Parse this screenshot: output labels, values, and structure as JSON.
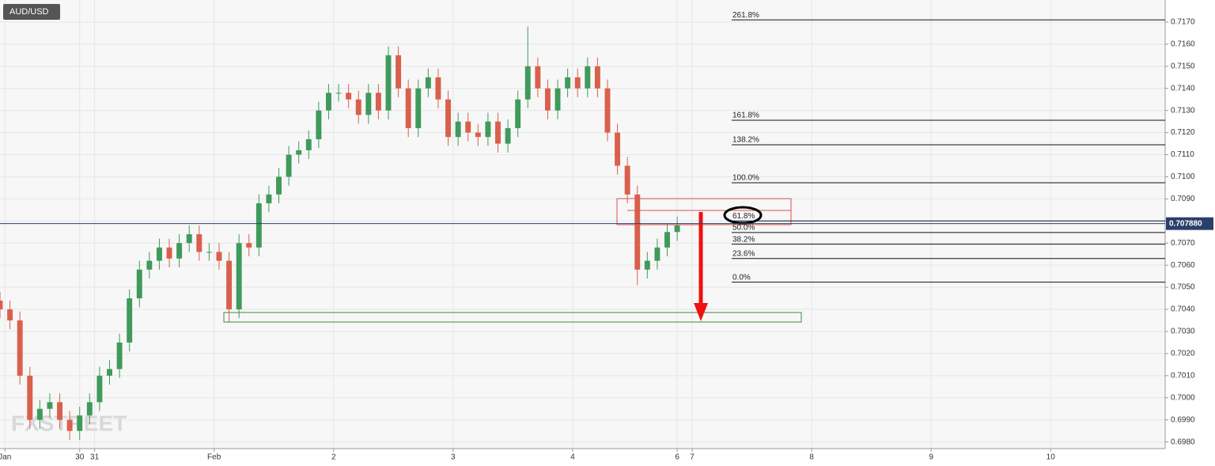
{
  "chart_data": {
    "type": "candlestick",
    "title": "AUD/USD",
    "watermark": "FXSTREET",
    "xlim": [
      0,
      234
    ],
    "ylim": [
      0.6977,
      0.718
    ],
    "xticks": [
      {
        "value": 1,
        "label": "Jan"
      },
      {
        "value": 16,
        "label": "30"
      },
      {
        "value": 19,
        "label": "31"
      },
      {
        "value": 43,
        "label": "Feb"
      },
      {
        "value": 67,
        "label": "2"
      },
      {
        "value": 91,
        "label": "3"
      },
      {
        "value": 115,
        "label": "4"
      },
      {
        "value": 136,
        "label": "6"
      },
      {
        "value": 139,
        "label": "7"
      },
      {
        "value": 163,
        "label": "8"
      },
      {
        "value": 187,
        "label": "9"
      },
      {
        "value": 211,
        "label": "10"
      }
    ],
    "yticks": [
      {
        "value": 0.698,
        "label": "0.6980"
      },
      {
        "value": 0.699,
        "label": "0.6990"
      },
      {
        "value": 0.7,
        "label": "0.7000"
      },
      {
        "value": 0.701,
        "label": "0.7010"
      },
      {
        "value": 0.702,
        "label": "0.7020"
      },
      {
        "value": 0.703,
        "label": "0.7030"
      },
      {
        "value": 0.704,
        "label": "0.7040"
      },
      {
        "value": 0.705,
        "label": "0.7050"
      },
      {
        "value": 0.706,
        "label": "0.7060"
      },
      {
        "value": 0.707,
        "label": "0.7070"
      },
      {
        "value": 0.708,
        "label": "0.7080"
      },
      {
        "value": 0.709,
        "label": "0.7090"
      },
      {
        "value": 0.71,
        "label": "0.7100"
      },
      {
        "value": 0.711,
        "label": "0.7110"
      },
      {
        "value": 0.712,
        "label": "0.7120"
      },
      {
        "value": 0.713,
        "label": "0.7130"
      },
      {
        "value": 0.714,
        "label": "0.7140"
      },
      {
        "value": 0.715,
        "label": "0.7150"
      },
      {
        "value": 0.716,
        "label": "0.7160"
      },
      {
        "value": 0.717,
        "label": "0.7170"
      }
    ],
    "grid": true,
    "up_color": "#3f9a5c",
    "down_color": "#d9604c",
    "x": [
      0,
      2,
      4,
      6,
      8,
      10,
      12,
      14,
      16,
      18,
      20,
      22,
      24,
      26,
      28,
      30,
      32,
      34,
      36,
      38,
      40,
      42,
      44,
      46,
      48,
      50,
      52,
      54,
      56,
      58,
      60,
      62,
      64,
      66,
      68,
      70,
      72,
      74,
      76,
      78,
      80,
      82,
      84,
      86,
      88,
      90,
      92,
      94,
      96,
      98,
      100,
      102,
      104,
      106,
      108,
      110,
      112,
      114,
      116,
      118,
      120,
      122,
      124,
      126,
      128,
      130,
      132,
      134,
      136
    ],
    "open": [
      0.7044,
      0.704,
      0.7035,
      0.701,
      0.699,
      0.6995,
      0.6998,
      0.699,
      0.6985,
      0.6992,
      0.6998,
      0.701,
      0.7013,
      0.7025,
      0.7045,
      0.7058,
      0.7062,
      0.7068,
      0.7063,
      0.707,
      0.7074,
      0.7066,
      0.7066,
      0.7062,
      0.704,
      0.707,
      0.7068,
      0.7088,
      0.7092,
      0.71,
      0.711,
      0.7112,
      0.7117,
      0.713,
      0.7138,
      0.7138,
      0.7135,
      0.7128,
      0.7138,
      0.713,
      0.7155,
      0.714,
      0.7122,
      0.714,
      0.7145,
      0.7135,
      0.7118,
      0.7125,
      0.712,
      0.7118,
      0.7125,
      0.7115,
      0.7122,
      0.7135,
      0.715,
      0.714,
      0.713,
      0.714,
      0.7145,
      0.714,
      0.715,
      0.714,
      0.712,
      0.7105,
      0.7092,
      0.7058,
      0.7062,
      0.7068,
      0.7075
    ],
    "high": [
      0.7048,
      0.7044,
      0.7039,
      0.7014,
      0.6999,
      0.7002,
      0.7002,
      0.6994,
      0.6996,
      0.7002,
      0.7014,
      0.7017,
      0.7029,
      0.7049,
      0.7062,
      0.7066,
      0.7072,
      0.7072,
      0.7074,
      0.7078,
      0.7078,
      0.707,
      0.707,
      0.7066,
      0.7074,
      0.7074,
      0.7092,
      0.7096,
      0.7104,
      0.7114,
      0.7116,
      0.7121,
      0.7134,
      0.7142,
      0.7142,
      0.7142,
      0.7139,
      0.7142,
      0.7142,
      0.7159,
      0.7159,
      0.7144,
      0.7144,
      0.7149,
      0.7149,
      0.7139,
      0.7129,
      0.7129,
      0.7124,
      0.7129,
      0.7129,
      0.7126,
      0.7139,
      0.7168,
      0.7154,
      0.7144,
      0.7144,
      0.7149,
      0.7149,
      0.7154,
      0.7154,
      0.7144,
      0.7124,
      0.7109,
      0.7096,
      0.7066,
      0.7072,
      0.7079,
      0.7082
    ],
    "low": [
      0.7036,
      0.7031,
      0.7006,
      0.6986,
      0.6986,
      0.6991,
      0.6986,
      0.6981,
      0.6981,
      0.6988,
      0.6994,
      0.7006,
      0.7009,
      0.7021,
      0.7041,
      0.7054,
      0.7058,
      0.7059,
      0.7059,
      0.7066,
      0.7062,
      0.7062,
      0.7058,
      0.7034,
      0.7036,
      0.7064,
      0.7064,
      0.7084,
      0.7088,
      0.7096,
      0.7106,
      0.7108,
      0.7113,
      0.7126,
      0.7134,
      0.7131,
      0.7124,
      0.7124,
      0.7126,
      0.7126,
      0.7136,
      0.7118,
      0.7118,
      0.7136,
      0.7131,
      0.7114,
      0.7114,
      0.7116,
      0.7114,
      0.7114,
      0.7111,
      0.7111,
      0.7118,
      0.7131,
      0.7136,
      0.7126,
      0.7126,
      0.7136,
      0.7136,
      0.7136,
      0.7136,
      0.7116,
      0.7101,
      0.7088,
      0.7051,
      0.7054,
      0.7058,
      0.7064,
      0.7071
    ],
    "close": [
      0.704,
      0.7035,
      0.701,
      0.699,
      0.6995,
      0.6998,
      0.699,
      0.6985,
      0.6992,
      0.6998,
      0.701,
      0.7013,
      0.7025,
      0.7045,
      0.7058,
      0.7062,
      0.7068,
      0.7063,
      0.707,
      0.7074,
      0.7066,
      0.7066,
      0.7062,
      0.704,
      0.707,
      0.7068,
      0.7088,
      0.7092,
      0.71,
      0.711,
      0.7112,
      0.7117,
      0.713,
      0.7138,
      0.7138,
      0.7135,
      0.7128,
      0.7138,
      0.713,
      0.7155,
      0.714,
      0.7122,
      0.714,
      0.7145,
      0.7135,
      0.7118,
      0.7125,
      0.712,
      0.7118,
      0.7125,
      0.7115,
      0.7122,
      0.7135,
      0.715,
      0.714,
      0.713,
      0.714,
      0.7145,
      0.714,
      0.715,
      0.714,
      0.712,
      0.7105,
      0.7092,
      0.7058,
      0.7062,
      0.7068,
      0.7075,
      0.7078
    ],
    "fib_levels": [
      {
        "value": 0.7171,
        "label": "261.8%"
      },
      {
        "value": 0.71256,
        "label": "161.8%"
      },
      {
        "value": 0.71145,
        "label": "138.2%"
      },
      {
        "value": 0.70973,
        "label": "100.0%"
      },
      {
        "value": 0.708,
        "label": "61.8%"
      },
      {
        "value": 0.70748,
        "label": "50.0%"
      },
      {
        "value": 0.70695,
        "label": "38.2%"
      },
      {
        "value": 0.7063,
        "label": "23.6%"
      },
      {
        "value": 0.70523,
        "label": "0.0%"
      }
    ],
    "last_price": {
      "value": 0.70788,
      "label": "0.707880"
    },
    "last_price_color": "#2a3f6b"
  }
}
